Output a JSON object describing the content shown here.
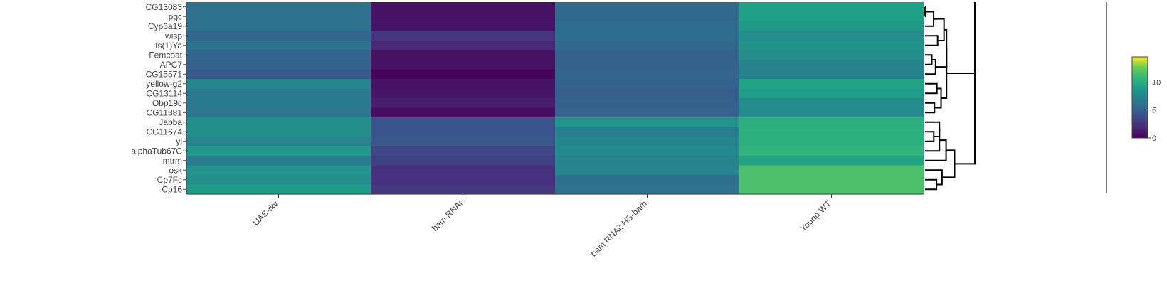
{
  "chart_data": {
    "type": "heatmap",
    "title": "",
    "xlabel": "",
    "ylabel": "",
    "x": [
      "UAS-tkv",
      "bam RNAi",
      "bam RNAi; HS-bam",
      "Young WT"
    ],
    "y": [
      "CG13083",
      "pgc",
      "Cyp6a19",
      "wisp",
      "fs(1)Ya",
      "Femcoat",
      "APC7",
      "CG15571",
      "yellow-g2",
      "CG13114",
      "Obp19c",
      "CG11381",
      "Jabba",
      "CG11674",
      "yl",
      "alphaTub67C",
      "mtrm",
      "osk",
      "Cp7Fc",
      "Cp16"
    ],
    "z": [
      [
        6.0,
        0.8,
        5.5,
        9.2
      ],
      [
        6.0,
        0.8,
        5.5,
        9.2
      ],
      [
        6.3,
        0.9,
        5.8,
        8.6
      ],
      [
        5.4,
        2.5,
        5.8,
        8.0
      ],
      [
        6.2,
        1.9,
        5.5,
        8.3
      ],
      [
        5.3,
        0.8,
        5.0,
        7.8
      ],
      [
        5.0,
        0.8,
        5.0,
        7.3
      ],
      [
        4.6,
        0.2,
        5.2,
        7.2
      ],
      [
        7.5,
        0.8,
        5.0,
        9.4
      ],
      [
        6.6,
        1.0,
        4.8,
        9.0
      ],
      [
        6.7,
        1.3,
        4.9,
        8.0
      ],
      [
        6.5,
        0.6,
        5.2,
        7.8
      ],
      [
        8.0,
        4.3,
        8.4,
        10.2
      ],
      [
        8.0,
        4.3,
        7.0,
        10.3
      ],
      [
        7.4,
        4.5,
        7.4,
        10.2
      ],
      [
        8.6,
        3.5,
        7.7,
        10.6
      ],
      [
        6.8,
        3.2,
        7.3,
        9.4
      ],
      [
        8.4,
        2.2,
        7.4,
        11.6
      ],
      [
        8.0,
        2.2,
        5.9,
        11.6
      ],
      [
        8.9,
        2.6,
        6.0,
        11.6
      ]
    ],
    "colorscale": "viridis",
    "zrange": [
      0,
      14.5
    ],
    "colorbar_ticks": [
      0,
      5,
      10
    ],
    "dendrogram": "right"
  }
}
